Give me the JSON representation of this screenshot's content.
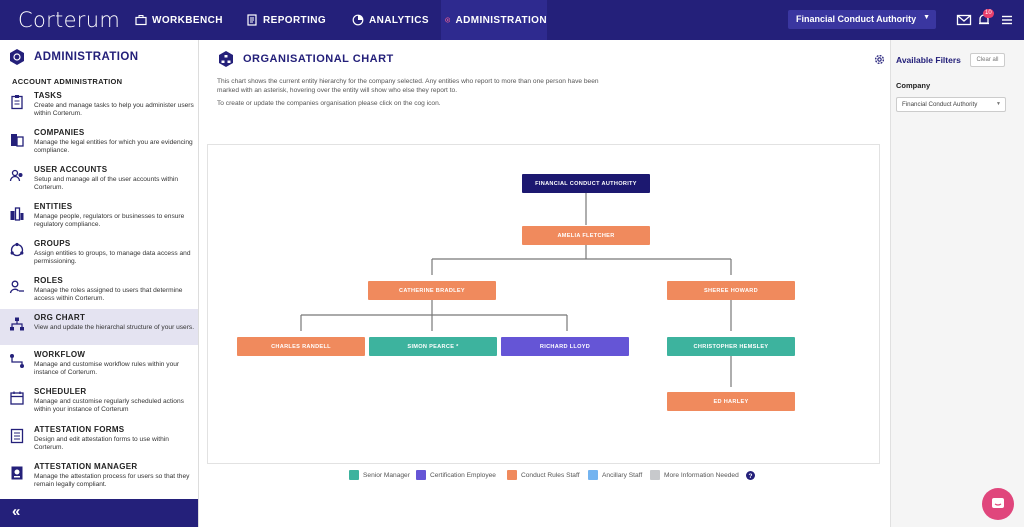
{
  "app": {
    "logo": "Corterum"
  },
  "nav": [
    {
      "label": "WORKBENCH",
      "icon": "briefcase-icon"
    },
    {
      "label": "REPORTING",
      "icon": "document-icon"
    },
    {
      "label": "ANALYTICS",
      "icon": "pie-chart-icon"
    },
    {
      "label": "ADMINISTRATION",
      "icon": "admin-icon",
      "active": true
    }
  ],
  "header": {
    "company_selector": "Financial Conduct Authority",
    "notification_count": "10"
  },
  "sidebar": {
    "title": "ADMINISTRATION",
    "section": "ACCOUNT ADMINISTRATION",
    "items": [
      {
        "title": "TASKS",
        "desc": "Create and manage tasks to help you administer users within Corterum.",
        "icon": "clipboard-icon"
      },
      {
        "title": "COMPANIES",
        "desc": "Manage the legal entities for which you are evidencing compliance.",
        "icon": "building-icon"
      },
      {
        "title": "USER ACCOUNTS",
        "desc": "Setup and manage all of the user accounts within Corterum.",
        "icon": "users-icon"
      },
      {
        "title": "ENTITIES",
        "desc": "Manage people, regulators or businesses to ensure regulatory compliance.",
        "icon": "entities-icon"
      },
      {
        "title": "GROUPS",
        "desc": "Assign entities to groups, to manage data access and permissioning.",
        "icon": "groups-icon"
      },
      {
        "title": "ROLES",
        "desc": "Manage the roles assigned to users that determine access within Corterum.",
        "icon": "user-key-icon"
      },
      {
        "title": "ORG CHART",
        "desc": "View and update the hierarchal structure of your users.",
        "icon": "org-chart-icon",
        "active": true
      },
      {
        "title": "WORKFLOW",
        "desc": "Manage and customise workflow rules within your instance of Corterum.",
        "icon": "workflow-icon"
      },
      {
        "title": "SCHEDULER",
        "desc": "Manage and customise regularly scheduled actions within your instance of Corterum",
        "icon": "calendar-icon"
      },
      {
        "title": "ATTESTATION FORMS",
        "desc": "Design and edit attestation forms to use within Corterum.",
        "icon": "form-icon"
      },
      {
        "title": "ATTESTATION MANAGER",
        "desc": "Manage the attestation process for users so that they remain legally compliant.",
        "icon": "attestation-icon"
      }
    ],
    "collapse_label": "«"
  },
  "main": {
    "title": "ORGANISATIONAL CHART",
    "intro": "This chart shows the current entity hierarchy for the company selected. Any entities who report to more than one person have been marked with an asterisk, hovering over the entity will show who else they report to.",
    "intro2": "To create or update the companies organisation please click on the cog icon."
  },
  "org_chart": {
    "nodes": [
      {
        "id": "fca",
        "label": "FINANCIAL CONDUCT AUTHORITY",
        "category": "root"
      },
      {
        "id": "af",
        "label": "AMELIA FLETCHER",
        "category": "Conduct Rules Staff",
        "parent": "fca"
      },
      {
        "id": "cb",
        "label": "CATHERINE BRADLEY",
        "category": "Conduct Rules Staff",
        "parent": "af"
      },
      {
        "id": "sh",
        "label": "SHEREE HOWARD",
        "category": "Conduct Rules Staff",
        "parent": "af"
      },
      {
        "id": "cr",
        "label": "CHARLES RANDELL",
        "category": "Conduct Rules Staff",
        "parent": "cb"
      },
      {
        "id": "sp",
        "label": "SIMON PEARCE *",
        "category": "Senior Manager",
        "parent": "cb"
      },
      {
        "id": "rl",
        "label": "RICHARD LLOYD",
        "category": "Certification Employee",
        "parent": "cb"
      },
      {
        "id": "ch",
        "label": "CHRISTOPHER HEMSLEY",
        "category": "Senior Manager",
        "parent": "sh"
      },
      {
        "id": "eh",
        "label": "ED HARLEY",
        "category": "Conduct Rules Staff",
        "parent": "ch"
      }
    ]
  },
  "legend": [
    {
      "label": "Senior Manager",
      "color": "#3db39e"
    },
    {
      "label": "Certification Employee",
      "color": "#6555d6"
    },
    {
      "label": "Conduct Rules Staff",
      "color": "#f08a5d"
    },
    {
      "label": "Ancillary Staff",
      "color": "#74b4f0"
    },
    {
      "label": "More Information Needed",
      "color": "#c7c9cc"
    }
  ],
  "filters": {
    "title": "Available Filters",
    "clear_label": "Clear all",
    "company_label": "Company",
    "company_value": "Financial Conduct Authority"
  },
  "colors": {
    "brand": "#24207a",
    "root_node": "#1c1870",
    "chat": "#e0467c"
  }
}
